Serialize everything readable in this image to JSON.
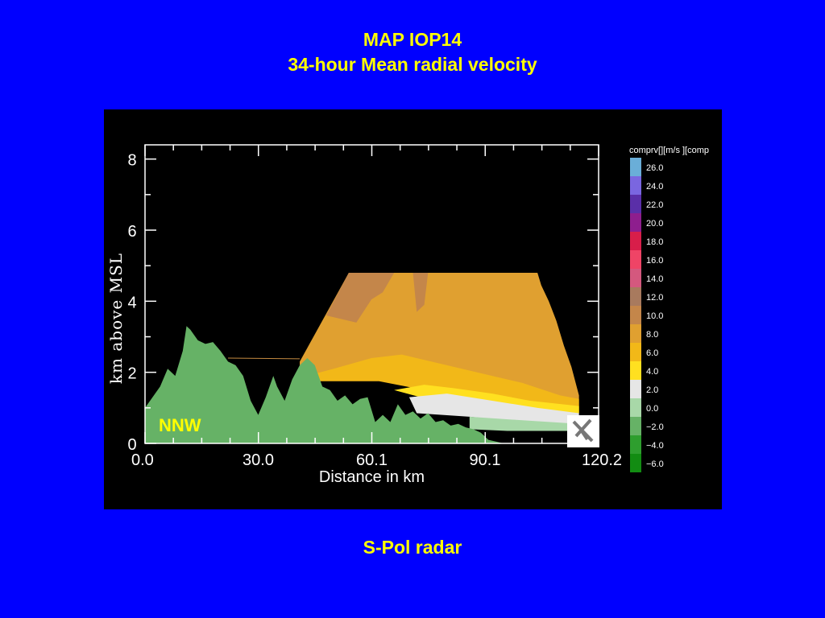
{
  "title": {
    "line1": "MAP IOP14",
    "line2": "34-hour Mean radial velocity"
  },
  "caption": "S-Pol radar",
  "colors": {
    "background": "#0000ff",
    "title": "#ffff00",
    "terrain": "#66b266",
    "nnw_label": "#ffff00"
  },
  "chart_data": {
    "type": "heatmap",
    "xlabel": "Distance in km",
    "ylabel": "km above MSL",
    "x_ticks": [
      "0.0",
      "30.0",
      "60.1",
      "90.1",
      "120.2"
    ],
    "x_tick_values": [
      0.0,
      30.0,
      60.1,
      90.1,
      120.2
    ],
    "y_ticks": [
      "0",
      "2",
      "4",
      "6",
      "8"
    ],
    "y_tick_values": [
      0,
      2,
      4,
      6,
      8
    ],
    "xlim": [
      0.0,
      120.2
    ],
    "ylim": [
      0,
      8.4
    ],
    "annotation": "NNW",
    "colorbar": {
      "label": "comprv[][m/s  ][comp",
      "bins": [
        {
          "label": "26.0",
          "value": 26.0,
          "color": "#6aaed8"
        },
        {
          "label": "24.0",
          "value": 24.0,
          "color": "#7a66e0"
        },
        {
          "label": "22.0",
          "value": 22.0,
          "color": "#5a2fa8"
        },
        {
          "label": "20.0",
          "value": 20.0,
          "color": "#8e1e8e"
        },
        {
          "label": "18.0",
          "value": 18.0,
          "color": "#d81e4a"
        },
        {
          "label": "16.0",
          "value": 16.0,
          "color": "#ef4466"
        },
        {
          "label": "14.0",
          "value": 14.0,
          "color": "#d4587e"
        },
        {
          "label": "12.0",
          "value": 12.0,
          "color": "#a87a5e"
        },
        {
          "label": "10.0",
          "value": 10.0,
          "color": "#c4864a"
        },
        {
          "label": "8.0",
          "value": 8.0,
          "color": "#e0a030"
        },
        {
          "label": "6.0",
          "value": 6.0,
          "color": "#f2b818"
        },
        {
          "label": "4.0",
          "value": 4.0,
          "color": "#ffe020"
        },
        {
          "label": "2.0",
          "value": 2.0,
          "color": "#e6e6e6"
        },
        {
          "label": "0.0",
          "value": 0.0,
          "color": "#a8d8a8"
        },
        {
          "label": "−2.0",
          "value": -2.0,
          "color": "#66b266"
        },
        {
          "label": "−4.0",
          "value": -4.0,
          "color": "#2e9e2e"
        },
        {
          "label": "−6.0",
          "value": -6.0,
          "color": "#128c12"
        }
      ]
    },
    "terrain_profile": {
      "x": [
        0,
        2,
        4,
        6,
        8,
        10,
        11,
        12,
        14,
        16,
        18,
        20,
        22,
        24,
        26,
        28,
        30,
        32,
        34,
        35,
        37,
        39,
        41,
        43,
        45,
        47,
        49,
        51,
        53,
        55,
        57,
        59,
        61,
        63,
        65,
        67,
        69,
        71,
        73,
        75,
        77,
        79,
        81,
        83,
        85,
        87,
        89,
        91,
        93,
        95,
        97,
        99,
        101,
        103,
        105,
        107,
        110,
        113,
        115
      ],
      "y": [
        1.0,
        1.3,
        1.6,
        2.1,
        1.9,
        2.6,
        3.3,
        3.2,
        2.9,
        2.8,
        2.85,
        2.6,
        2.3,
        2.2,
        1.9,
        1.2,
        0.8,
        1.3,
        1.9,
        1.6,
        1.2,
        1.8,
        2.2,
        2.4,
        2.2,
        1.6,
        1.5,
        1.2,
        1.35,
        1.1,
        1.25,
        1.3,
        0.6,
        0.8,
        0.6,
        1.1,
        0.8,
        0.9,
        0.7,
        0.85,
        0.6,
        0.65,
        0.5,
        0.55,
        0.45,
        0.4,
        0.3,
        0.1,
        0.05,
        0.0,
        0.0,
        0.0,
        0.0,
        0.0,
        0.0,
        0.0,
        0.0,
        0.0,
        0.0
      ]
    },
    "velocity_regions": [
      {
        "value": 8.0,
        "x": [
          41,
          54,
          104,
          105,
          107,
          109,
          111,
          113,
          115,
          115,
          96,
          84,
          74,
          64,
          54,
          41
        ],
        "y": [
          2.3,
          4.8,
          4.8,
          4.45,
          4.0,
          3.45,
          2.75,
          2.15,
          1.35,
          0.85,
          0.85,
          1.0,
          1.5,
          1.8,
          1.85,
          2.0
        ]
      },
      {
        "value": 10.0,
        "x": [
          54,
          66,
          63,
          60,
          56,
          48
        ],
        "y": [
          4.8,
          4.8,
          4.25,
          4.05,
          3.4,
          3.6
        ]
      },
      {
        "value": 10.0,
        "x": [
          71,
          75,
          74,
          72
        ],
        "y": [
          4.8,
          4.8,
          3.9,
          3.7
        ]
      },
      {
        "value": 6.0,
        "x": [
          41,
          50,
          60,
          68,
          80,
          92,
          100,
          110,
          115,
          115,
          100,
          85,
          74,
          62,
          41
        ],
        "y": [
          1.85,
          2.1,
          2.4,
          2.5,
          2.2,
          1.9,
          1.7,
          1.35,
          1.25,
          0.85,
          0.85,
          1.05,
          1.5,
          1.75,
          1.75
        ]
      },
      {
        "value": 4.0,
        "x": [
          66,
          74,
          82,
          92,
          102,
          115,
          115,
          100,
          86,
          73
        ],
        "y": [
          1.5,
          1.65,
          1.55,
          1.4,
          1.2,
          1.05,
          0.85,
          0.85,
          1.0,
          1.3
        ]
      },
      {
        "value": 2.0,
        "x": [
          70,
          80,
          92,
          104,
          115,
          115,
          100,
          86,
          72
        ],
        "y": [
          1.3,
          1.4,
          1.2,
          1.0,
          0.85,
          0.55,
          0.6,
          0.75,
          0.85
        ]
      },
      {
        "value": 0.0,
        "x": [
          86,
          100,
          115,
          115,
          96,
          86
        ],
        "y": [
          0.75,
          0.65,
          0.55,
          0.35,
          0.35,
          0.4
        ]
      }
    ]
  }
}
